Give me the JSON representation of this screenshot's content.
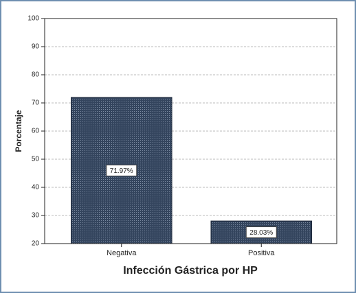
{
  "chart_data": {
    "type": "bar",
    "x_label": "Infección Gástrica por HP",
    "y_label": "Porcentaje",
    "categories": [
      "Negativa",
      "Positiva"
    ],
    "values": [
      71.97,
      28.03
    ],
    "value_labels": [
      "71.97%",
      "28.03%"
    ],
    "color": "#34455e",
    "ylim": [
      20,
      100
    ],
    "yticks": [
      20,
      30,
      40,
      50,
      60,
      70,
      80,
      90,
      100
    ],
    "grid": true
  }
}
